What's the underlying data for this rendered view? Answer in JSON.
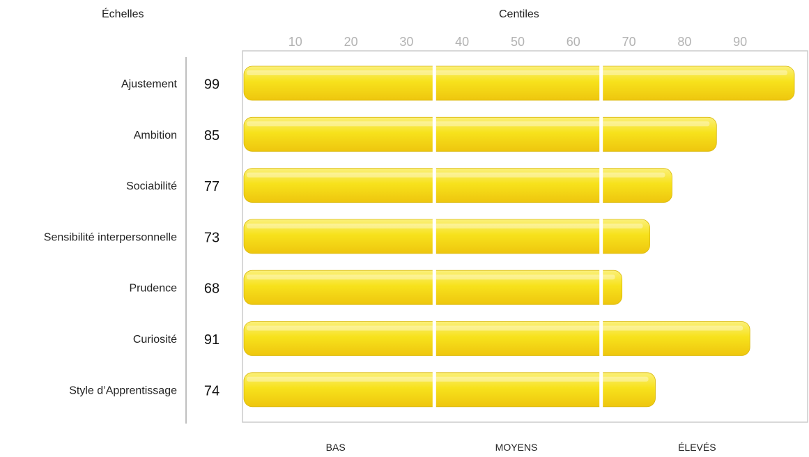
{
  "header": {
    "scales_title": "Échelles",
    "centiles_title": "Centiles"
  },
  "colors": {
    "bar_top": "#fbf07a",
    "bar_mid": "#f7e21c",
    "bar_bottom": "#eec60e",
    "bar_edge": "#d9b80c",
    "frame": "#cccccc",
    "divider": "#aaaaaa",
    "tick_text": "#b3b3b3"
  },
  "chart_data": {
    "type": "bar",
    "orientation": "horizontal",
    "xlabel": "Centiles",
    "ylabel": "Échelles",
    "xlim": [
      0,
      100
    ],
    "xticks": [
      10,
      20,
      30,
      40,
      50,
      60,
      70,
      80,
      90
    ],
    "categories": [
      "Ajustement",
      "Ambition",
      "Sociabilité",
      "Sensibilité interpersonnelle",
      "Prudence",
      "Curiosité",
      "Style d’Apprentissage"
    ],
    "values": [
      99,
      85,
      77,
      73,
      68,
      91,
      74
    ],
    "band_breaks": [
      35,
      65
    ],
    "bands": [
      "BAS",
      "MOYENS",
      "ÉLEVÉS"
    ],
    "grid": false,
    "legend": "none"
  }
}
